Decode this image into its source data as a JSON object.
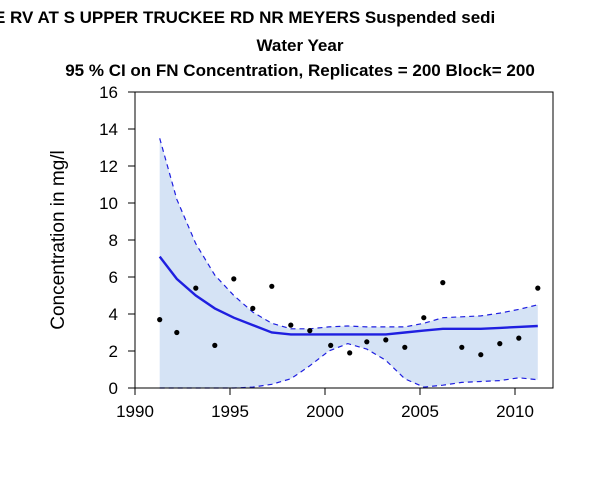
{
  "title_lines": [
    "E RV AT S UPPER TRUCKEE RD NR MEYERS   Suspended sedi",
    "Water Year",
    "95 % CI on FN Concentration, Replicates = 200 Block= 200"
  ],
  "colors": {
    "band_fill": "#d5e3f5",
    "line": "#1f1fe0",
    "points": "#000000",
    "axis": "#000000"
  },
  "chart_data": {
    "type": "line",
    "ylabel": "Concentration in mg/l",
    "xlabel": "",
    "xlim": [
      1990,
      2012
    ],
    "ylim": [
      0,
      16
    ],
    "xticks": [
      1990,
      1995,
      2000,
      2005,
      2010
    ],
    "yticks": [
      0,
      2,
      4,
      6,
      8,
      10,
      12,
      14,
      16
    ],
    "grid": false,
    "observations": {
      "x": [
        1991.3,
        1992.2,
        1993.2,
        1994.2,
        1995.2,
        1996.2,
        1997.2,
        1998.2,
        1999.2,
        2000.3,
        2001.3,
        2002.2,
        2003.2,
        2004.2,
        2005.2,
        2006.2,
        2007.2,
        2008.2,
        2009.2,
        2010.2,
        2011.2
      ],
      "y": [
        3.7,
        3.0,
        5.4,
        2.3,
        5.9,
        4.3,
        5.5,
        3.4,
        3.1,
        2.3,
        1.9,
        2.5,
        2.6,
        2.2,
        3.8,
        5.7,
        2.2,
        1.8,
        2.4,
        2.7,
        5.4
      ]
    },
    "fn_concentration": {
      "x": [
        1991.3,
        1992.2,
        1993.2,
        1994.2,
        1995.2,
        1996.2,
        1997.2,
        1998.2,
        1999.2,
        2000.2,
        2001.2,
        2002.2,
        2003.2,
        2004.2,
        2005.2,
        2006.2,
        2007.2,
        2008.2,
        2009.2,
        2010.2,
        2011.2
      ],
      "y": [
        7.1,
        5.9,
        5.0,
        4.3,
        3.8,
        3.4,
        3.0,
        2.9,
        2.9,
        2.9,
        2.9,
        2.9,
        2.9,
        3.0,
        3.1,
        3.2,
        3.2,
        3.2,
        3.25,
        3.3,
        3.35
      ]
    },
    "ci_upper": {
      "x": [
        1991.3,
        1992.2,
        1993.2,
        1994.2,
        1995.2,
        1996.2,
        1997.2,
        1998.2,
        1999.2,
        2000.2,
        2001.2,
        2002.2,
        2003.2,
        2004.2,
        2005.2,
        2006.2,
        2007.2,
        2008.2,
        2009.2,
        2010.2,
        2011.2
      ],
      "y": [
        13.5,
        10.2,
        7.8,
        6.1,
        5.0,
        4.1,
        3.5,
        3.2,
        3.2,
        3.3,
        3.35,
        3.3,
        3.3,
        3.3,
        3.5,
        3.8,
        3.85,
        3.9,
        4.05,
        4.25,
        4.5
      ]
    },
    "ci_lower": {
      "x": [
        1991.3,
        1992.2,
        1993.2,
        1994.2,
        1995.2,
        1996.2,
        1997.2,
        1998.2,
        1999.2,
        2000.2,
        2001.2,
        2002.2,
        2003.2,
        2004.2,
        2005.2,
        2006.2,
        2007.2,
        2008.2,
        2009.2,
        2010.2,
        2011.2
      ],
      "y": [
        0,
        0,
        0,
        0,
        0,
        0.05,
        0.2,
        0.5,
        1.2,
        2.0,
        2.4,
        2.1,
        1.5,
        0.5,
        0.05,
        0.15,
        0.3,
        0.35,
        0.4,
        0.55,
        0.45
      ]
    }
  }
}
